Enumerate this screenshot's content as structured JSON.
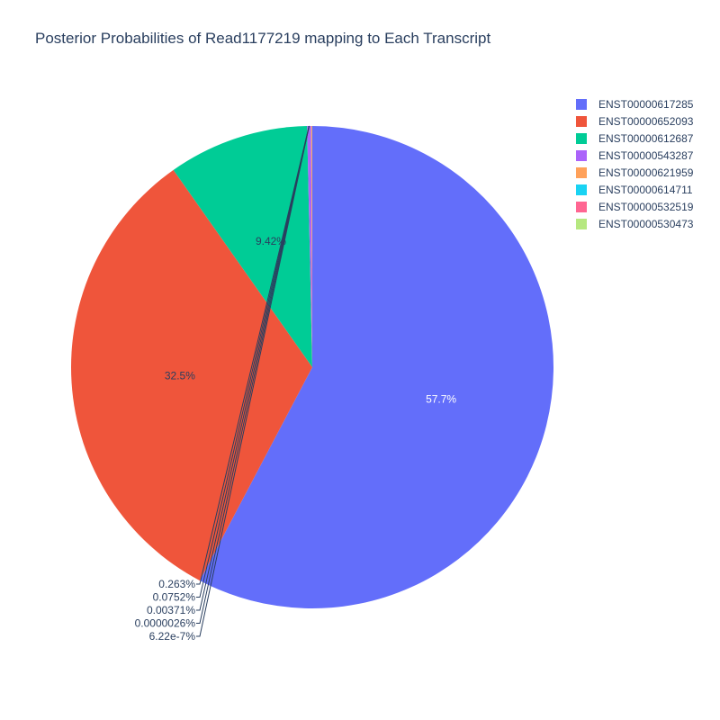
{
  "chart_data": {
    "type": "pie",
    "title": "Posterior Probabilities of Read1177219 mapping to Each Transcript",
    "labels": [
      "ENST00000617285",
      "ENST00000652093",
      "ENST00000612687",
      "ENST00000543287",
      "ENST00000621959",
      "ENST00000614711",
      "ENST00000532519",
      "ENST00000530473"
    ],
    "values": [
      57.7,
      32.5,
      9.42,
      0.263,
      0.0752,
      0.00371,
      2.6e-06,
      6.22e-07
    ],
    "text_labels": [
      "57.7%",
      "32.5%",
      "9.42%",
      "0.263%",
      "0.0752%",
      "0.00371%",
      "0.0000026%",
      "6.22e-7%"
    ],
    "colors": [
      "#636efa",
      "#EF553B",
      "#00cc96",
      "#ab63fa",
      "#FFA15A",
      "#19d3f3",
      "#FF6692",
      "#B6E880"
    ],
    "legend_position": "top-right",
    "direction": "clockwise",
    "rotation": "top"
  }
}
